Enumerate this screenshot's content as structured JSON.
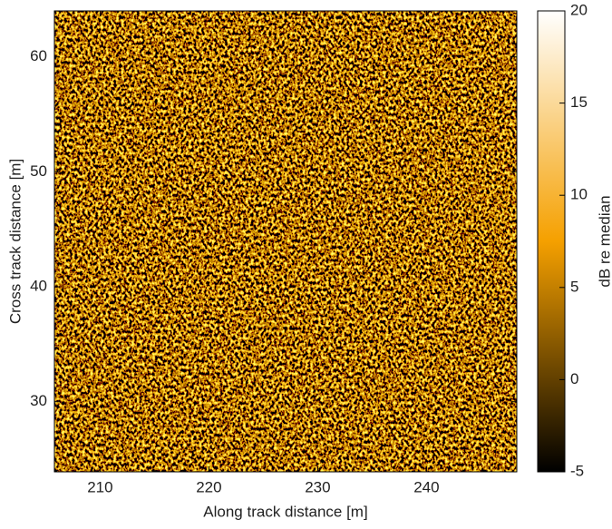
{
  "chart_data": {
    "type": "heatmap",
    "xlabel": "Along track distance [m]",
    "ylabel": "Cross track distance [m]",
    "xlim": [
      205.8,
      248.3
    ],
    "xticks": [
      210,
      220,
      230,
      240
    ],
    "ylim": [
      23.9,
      64
    ],
    "yticks": [
      30,
      40,
      50,
      60
    ],
    "colorbar": {
      "label": "dB re median",
      "lim": [
        -5,
        20
      ],
      "ticks": [
        -5,
        0,
        5,
        10,
        15,
        20
      ]
    },
    "colormap": [
      "#000000",
      "#f5a000",
      "#ffffff"
    ]
  }
}
